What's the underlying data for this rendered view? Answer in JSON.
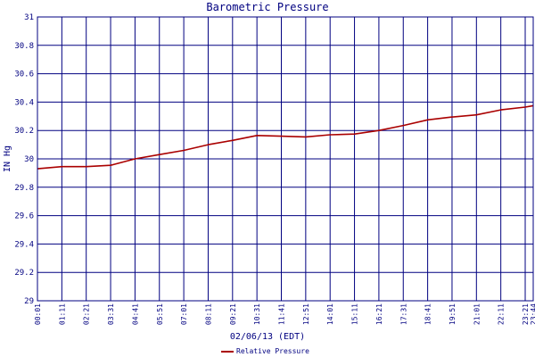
{
  "chart_data": {
    "type": "line",
    "title": "Barometric Pressure",
    "xlabel": "02/06/13 (EDT)",
    "ylabel": "IN Hg",
    "ylim": [
      29,
      31
    ],
    "yticks": [
      "29",
      "29.2",
      "29.4",
      "29.6",
      "29.8",
      "30",
      "30.2",
      "30.4",
      "30.6",
      "30.8",
      "31"
    ],
    "x_tick_labels": [
      "00:01",
      "01:11",
      "02:21",
      "03:31",
      "04:41",
      "05:51",
      "07:01",
      "08:11",
      "09:21",
      "10:31",
      "11:41",
      "12:51",
      "14:01",
      "15:11",
      "16:21",
      "17:31",
      "18:41",
      "19:51",
      "21:01",
      "22:11",
      "23:21",
      "23:44"
    ],
    "grid": true,
    "colors": {
      "grid": "#000080",
      "line": "#aa0000",
      "text": "#000080"
    },
    "series": [
      {
        "name": "Relative Pressure",
        "points": [
          [
            "00:01",
            29.93
          ],
          [
            "01:11",
            29.945
          ],
          [
            "02:21",
            29.945
          ],
          [
            "03:31",
            29.955
          ],
          [
            "04:41",
            30.0
          ],
          [
            "05:51",
            30.03
          ],
          [
            "07:01",
            30.06
          ],
          [
            "08:11",
            30.1
          ],
          [
            "09:21",
            30.13
          ],
          [
            "10:31",
            30.165
          ],
          [
            "11:41",
            30.16
          ],
          [
            "12:51",
            30.155
          ],
          [
            "14:01",
            30.17
          ],
          [
            "15:11",
            30.175
          ],
          [
            "16:21",
            30.2
          ],
          [
            "17:31",
            30.235
          ],
          [
            "18:41",
            30.275
          ],
          [
            "19:51",
            30.295
          ],
          [
            "21:01",
            30.31
          ],
          [
            "22:11",
            30.345
          ],
          [
            "23:21",
            30.365
          ],
          [
            "23:44",
            30.375
          ]
        ]
      }
    ]
  }
}
